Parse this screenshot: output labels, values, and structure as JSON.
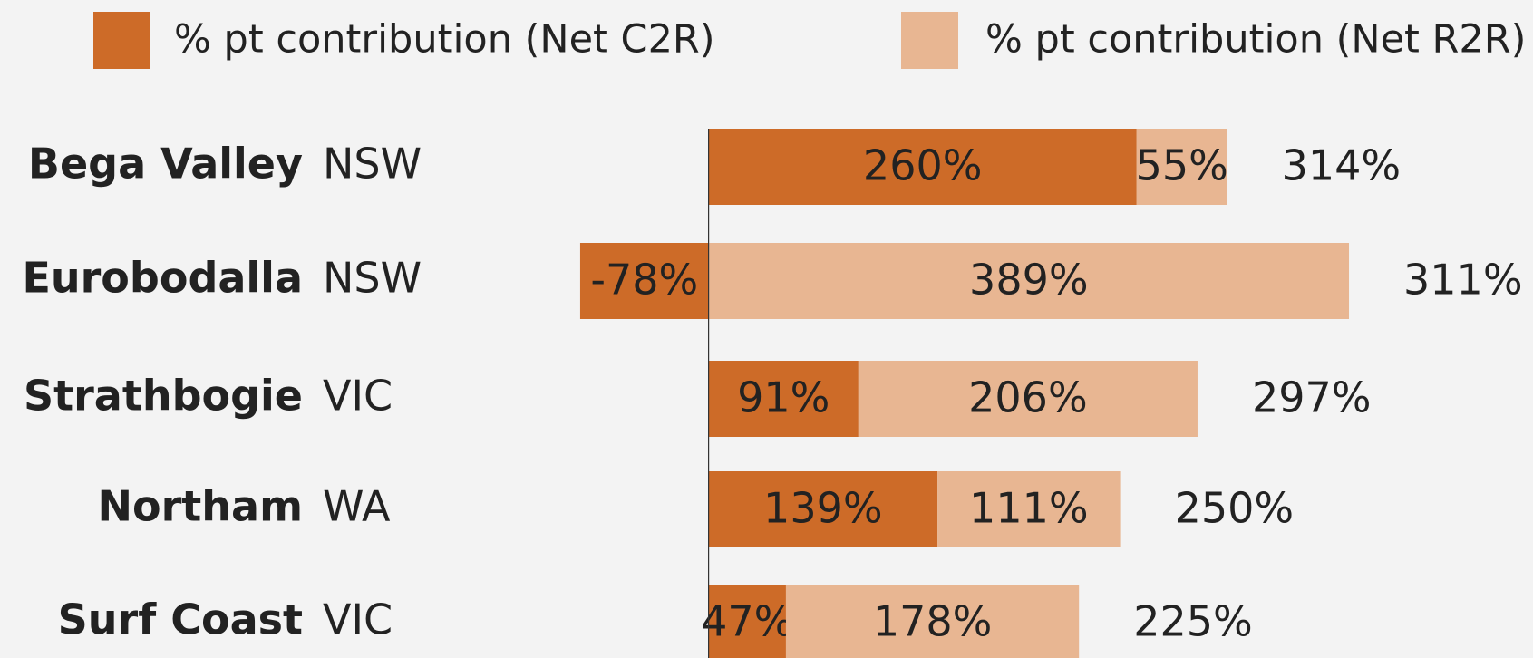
{
  "chart_data": {
    "type": "stacked-bar-horizontal",
    "categories": [
      "Bega Valley",
      "Eurobodalla",
      "Strathbogie",
      "Northam",
      "Surf Coast"
    ],
    "states": [
      "NSW",
      "NSW",
      "VIC",
      "WA",
      "VIC"
    ],
    "series": [
      {
        "name": "% pt contribution (Net C2R)",
        "color": "#cd6b28",
        "values": [
          260,
          -78,
          91,
          139,
          47
        ],
        "value_labels": [
          "260%",
          "-78%",
          "91%",
          "139%",
          "47%"
        ]
      },
      {
        "name": "% pt contribution (Net R2R)",
        "color": "#e8b692",
        "values": [
          55,
          389,
          206,
          111,
          178
        ],
        "value_labels": [
          "55%",
          "389%",
          "206%",
          "111%",
          "178%"
        ]
      }
    ],
    "totals": [
      314,
      311,
      297,
      250,
      225
    ],
    "total_labels": [
      "314%",
      "311%",
      "297%",
      "250%",
      "225%"
    ],
    "xlim": [
      -100,
      400
    ]
  }
}
